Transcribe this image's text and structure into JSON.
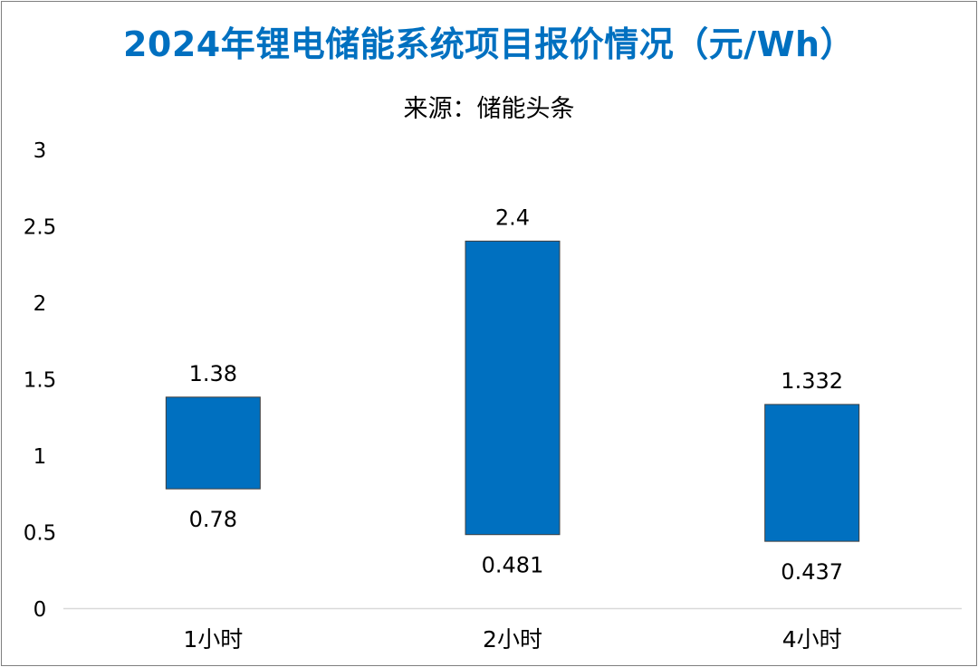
{
  "chart_data": {
    "type": "bar",
    "subtype": "floating-range",
    "title": "2024年锂电储能系统项目报价情况（元/Wh）",
    "subtitle": "来源：储能头条",
    "categories": [
      "1小时",
      "2小时",
      "4小时"
    ],
    "series": [
      {
        "low": [
          0.78,
          0.481,
          0.437
        ],
        "high": [
          1.38,
          2.4,
          1.332
        ]
      }
    ],
    "low_labels": [
      "0.78",
      "0.481",
      "0.437"
    ],
    "high_labels": [
      "1.38",
      "2.4",
      "1.332"
    ],
    "yticks": [
      "0",
      "0.5",
      "1",
      "1.5",
      "2",
      "2.5",
      "3"
    ],
    "ylim": [
      0,
      3
    ],
    "grid": false,
    "legend": "none",
    "colors": {
      "bar": "#0070c0",
      "bar_edge": "#404040",
      "title": "#0070c0",
      "axis": "#d9d9d9"
    }
  }
}
